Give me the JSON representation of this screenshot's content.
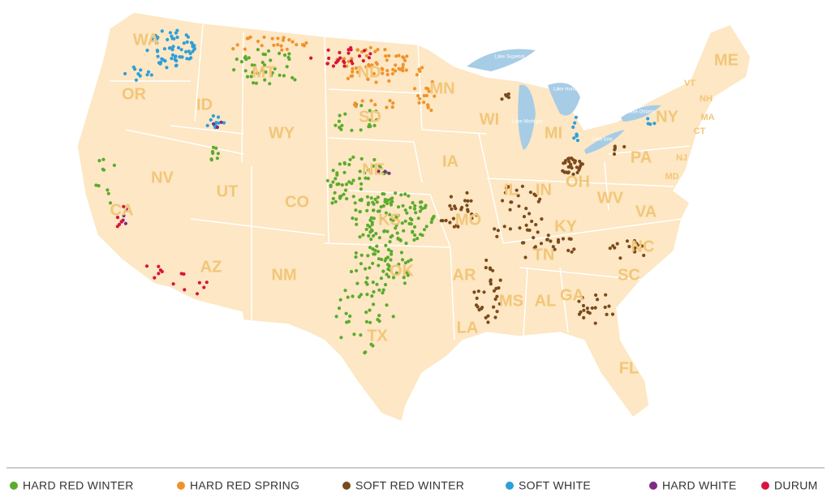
{
  "states": [
    {
      "label": "WA"
    },
    {
      "label": "OR"
    },
    {
      "label": "ID"
    },
    {
      "label": "MT"
    },
    {
      "label": "WY"
    },
    {
      "label": "NV"
    },
    {
      "label": "UT"
    },
    {
      "label": "CO"
    },
    {
      "label": "AZ"
    },
    {
      "label": "NM"
    },
    {
      "label": "CA"
    },
    {
      "label": "ND"
    },
    {
      "label": "SD"
    },
    {
      "label": "NE"
    },
    {
      "label": "KS"
    },
    {
      "label": "OK"
    },
    {
      "label": "TX"
    },
    {
      "label": "MN"
    },
    {
      "label": "IA"
    },
    {
      "label": "MO"
    },
    {
      "label": "AR"
    },
    {
      "label": "LA"
    },
    {
      "label": "WI"
    },
    {
      "label": "IL"
    },
    {
      "label": "MI"
    },
    {
      "label": "IN"
    },
    {
      "label": "OH"
    },
    {
      "label": "KY"
    },
    {
      "label": "TN"
    },
    {
      "label": "MS"
    },
    {
      "label": "AL"
    },
    {
      "label": "GA"
    },
    {
      "label": "FL"
    },
    {
      "label": "SC"
    },
    {
      "label": "NC"
    },
    {
      "label": "VA"
    },
    {
      "label": "WV"
    },
    {
      "label": "PA"
    },
    {
      "label": "NY"
    },
    {
      "label": "ME"
    },
    {
      "label": "VT"
    },
    {
      "label": "NH"
    },
    {
      "label": "MA"
    },
    {
      "label": "CT"
    },
    {
      "label": "NJ"
    },
    {
      "label": "MD"
    }
  ],
  "lakes": [
    {
      "label": "Lake Superior"
    },
    {
      "label": "Lake Huron"
    },
    {
      "label": "Lake Michigan"
    },
    {
      "label": "Lake Erie"
    },
    {
      "label": "Lake Ontario"
    }
  ],
  "legend": [
    {
      "label": "HARD RED WINTER",
      "color": "#5bab2f"
    },
    {
      "label": "HARD RED SPRING",
      "color": "#f0922b"
    },
    {
      "label": "SOFT RED WINTER",
      "color": "#7b4a1d"
    },
    {
      "label": "SOFT WHITE",
      "color": "#2e9fd8"
    },
    {
      "label": "HARD WHITE",
      "color": "#7d2b84"
    },
    {
      "label": "DURUM",
      "color": "#d8143c"
    }
  ]
}
